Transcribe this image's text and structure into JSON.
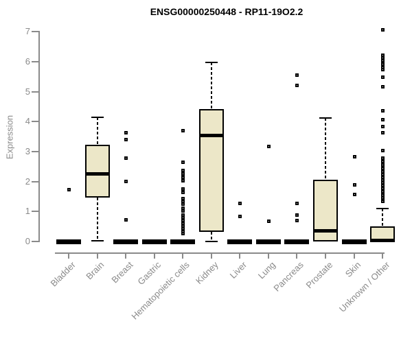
{
  "title": "ENSG00000250448 - RP11-19O2.2",
  "chart_data": {
    "type": "boxplot",
    "title": "ENSG00000250448 - RP11-19O2.2",
    "ylabel": "Expression",
    "xlabel": "",
    "ylim": [
      0,
      7.1
    ],
    "yticks": [
      0,
      1,
      2,
      3,
      4,
      5,
      6,
      7
    ],
    "grid": false,
    "legend": "none",
    "box_fill_color": "#ece7c8",
    "box_line_color": "#000000",
    "axis_color": "#8a8a8a",
    "label_color": "#8a8a8a",
    "categories": [
      "Bladder",
      "Brain",
      "Breast",
      "Gastric",
      "Hematopoietic cells",
      "Kidney",
      "Liver",
      "Lung",
      "Pancreas",
      "Prostate",
      "Skin",
      "Unknown / Other"
    ],
    "boxes": [
      {
        "category": "Bladder",
        "q1": 0,
        "median": 0,
        "q3": 0,
        "whisker_low": 0,
        "whisker_high": 0,
        "outliers": [
          1.73
        ]
      },
      {
        "category": "Brain",
        "q1": 1.47,
        "median": 2.27,
        "q3": 3.23,
        "whisker_low": 0.02,
        "whisker_high": 4.15,
        "outliers": []
      },
      {
        "category": "Breast",
        "q1": 0,
        "median": 0,
        "q3": 0,
        "whisker_low": 0,
        "whisker_high": 0,
        "outliers": [
          3.64,
          3.41,
          2.8,
          2.02,
          0.74
        ]
      },
      {
        "category": "Gastric",
        "q1": 0,
        "median": 0,
        "q3": 0,
        "whisker_low": 0,
        "whisker_high": 0,
        "outliers": []
      },
      {
        "category": "Hematopoietic cells",
        "q1": 0,
        "median": 0,
        "q3": 0,
        "whisker_low": 0,
        "whisker_high": 0,
        "outliers": [
          3.7,
          2.65,
          2.37,
          2.26,
          2.15,
          2.04,
          1.76,
          1.65,
          1.45,
          1.35,
          1.25,
          1.12,
          1.02,
          0.89,
          0.8,
          0.71,
          0.62,
          0.52,
          0.43,
          0.34,
          0.27
        ]
      },
      {
        "category": "Kidney",
        "q1": 0.33,
        "median": 3.55,
        "q3": 4.42,
        "whisker_low": 0.0,
        "whisker_high": 5.97,
        "outliers": []
      },
      {
        "category": "Liver",
        "q1": 0,
        "median": 0,
        "q3": 0,
        "whisker_low": 0,
        "whisker_high": 0,
        "outliers": [
          1.28,
          0.85
        ]
      },
      {
        "category": "Lung",
        "q1": 0,
        "median": 0,
        "q3": 0,
        "whisker_low": 0,
        "whisker_high": 0,
        "outliers": [
          3.17,
          0.69
        ]
      },
      {
        "category": "Pancreas",
        "q1": 0,
        "median": 0,
        "q3": 0,
        "whisker_low": 0,
        "whisker_high": 0,
        "outliers": [
          5.55,
          5.22,
          1.28,
          0.89,
          0.71
        ]
      },
      {
        "category": "Prostate",
        "q1": 0.0,
        "median": 0.36,
        "q3": 2.06,
        "whisker_low": 0.0,
        "whisker_high": 4.12,
        "outliers": []
      },
      {
        "category": "Skin",
        "q1": 0,
        "median": 0,
        "q3": 0,
        "whisker_low": 0,
        "whisker_high": 0,
        "outliers": [
          2.83,
          1.89,
          1.59
        ]
      },
      {
        "category": "Unknown / Other",
        "q1": 0.0,
        "median": 0.05,
        "q3": 0.5,
        "whisker_low": 0.0,
        "whisker_high": 1.09,
        "outliers": [
          7.07,
          6.23,
          6.13,
          6.03,
          5.92,
          5.82,
          5.74,
          5.49,
          5.17,
          4.37,
          4.08,
          3.85,
          3.63,
          3.05,
          2.79,
          2.67,
          2.56,
          2.44,
          2.33,
          2.24,
          2.15,
          2.05,
          1.96,
          1.87,
          1.78,
          1.66,
          1.55,
          1.46,
          1.34
        ]
      }
    ]
  }
}
